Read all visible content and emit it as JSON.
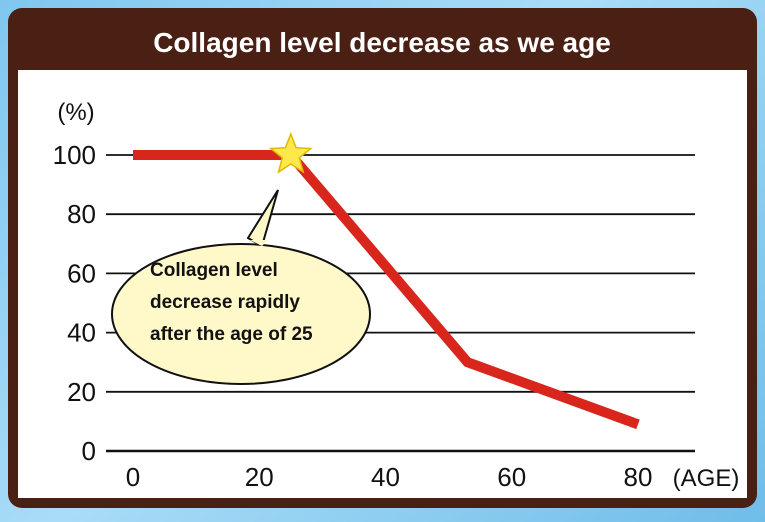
{
  "title": "Collagen level decrease as we age",
  "colors": {
    "header": "#4a1f14",
    "line": "#d9261c",
    "star": "#ffe94a",
    "callout": "#fff8c9",
    "grid": "#111111"
  },
  "chart_data": {
    "type": "line",
    "title": "Collagen level decrease as we age",
    "ylabel": "(%)",
    "xlabel": "(AGE)",
    "xlim": [
      0,
      80
    ],
    "ylim": [
      0,
      100
    ],
    "xticks": [
      0,
      20,
      40,
      60,
      80
    ],
    "yticks": [
      0,
      20,
      40,
      60,
      80,
      100
    ],
    "grid": true,
    "series": [
      {
        "x": [
          0,
          25,
          53,
          80
        ],
        "y": [
          100,
          100,
          30,
          9
        ]
      }
    ],
    "annotations": [
      {
        "lines": [
          "Collagen level",
          "decrease rapidly",
          "after the age of 25"
        ],
        "x": 25,
        "y": 100,
        "marker": "star-icon"
      }
    ]
  }
}
